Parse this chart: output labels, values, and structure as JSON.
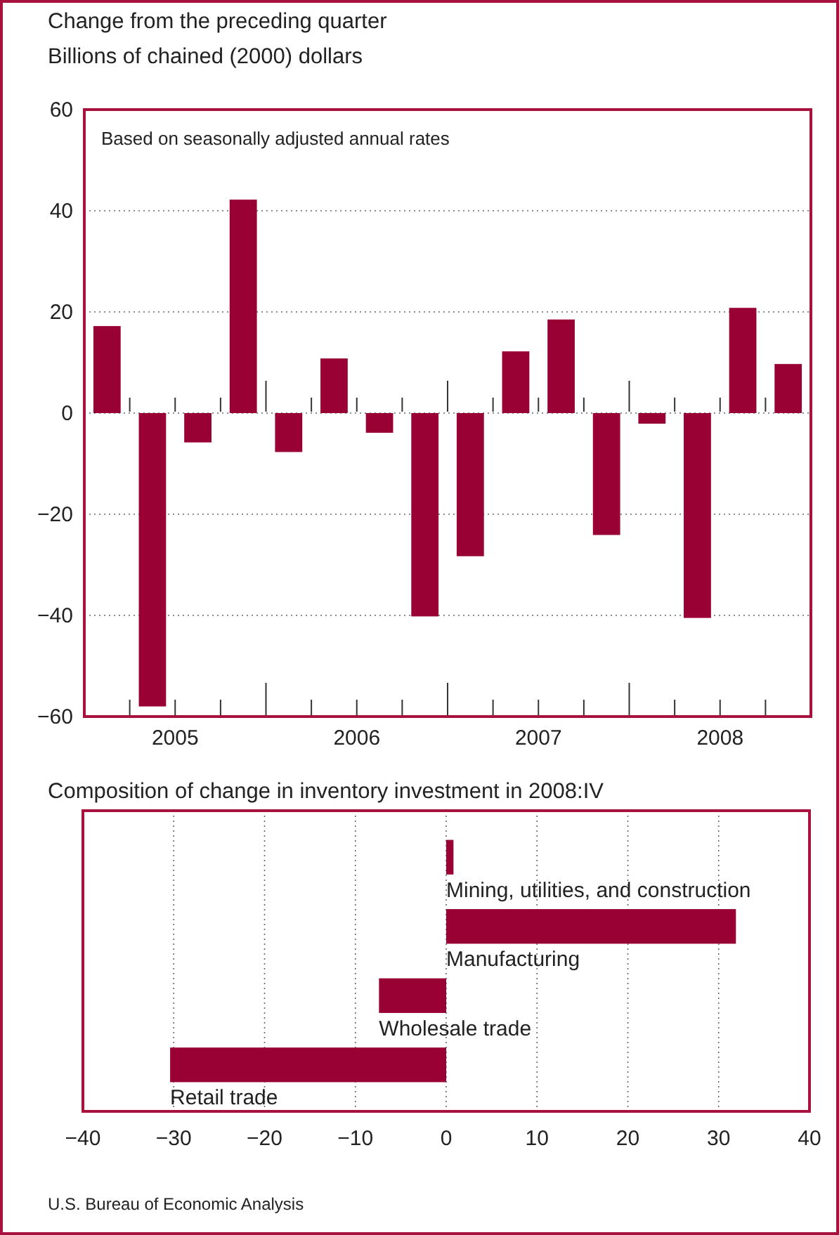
{
  "chart_data": [
    {
      "type": "bar",
      "title": "Change from the preceding quarter",
      "subtitle": "Billions of chained (2000) dollars",
      "x": [
        2005.125,
        2005.375,
        2005.625,
        2005.875,
        2006.125,
        2006.375,
        2006.625,
        2006.875,
        2007.125,
        2007.375,
        2007.625,
        2007.875,
        2008.125,
        2008.375,
        2008.625,
        2008.875
      ],
      "values": [
        17.2,
        -58,
        -5.8,
        42.2,
        -7.7,
        10.8,
        -3.9,
        -40.2,
        -28.3,
        12.2,
        18.5,
        -24.1,
        -2.1,
        -40.5,
        20.8,
        9.7
      ],
      "color": "#990033",
      "xlim": [
        2005,
        2009
      ],
      "xticks": [
        {
          "value": 2005.5,
          "label": "2005"
        },
        {
          "value": 2006.5,
          "label": "2006"
        },
        {
          "value": 2007.5,
          "label": "2007"
        },
        {
          "value": 2008.5,
          "label": "2008"
        },
        {
          "value": 2005.25,
          "label": null
        },
        {
          "value": 2005.5,
          "label": null
        },
        {
          "value": 2005.75,
          "label": null
        },
        {
          "value": 2006,
          "label": null
        },
        {
          "value": 2006.25,
          "label": null
        },
        {
          "value": 2006.5,
          "label": null
        },
        {
          "value": 2006.75,
          "label": null
        },
        {
          "value": 2007,
          "label": null
        },
        {
          "value": 2007.25,
          "label": null
        },
        {
          "value": 2007.5,
          "label": null
        },
        {
          "value": 2007.75,
          "label": null
        },
        {
          "value": 2008,
          "label": null
        },
        {
          "value": 2008.25,
          "label": null
        },
        {
          "value": 2008.5,
          "label": null
        },
        {
          "value": 2008.75,
          "label": null
        }
      ],
      "ylim": [
        -60,
        60
      ],
      "yticks": [
        -60,
        -40,
        -20,
        0,
        20,
        40,
        60
      ],
      "grid": "y",
      "legend": false,
      "annotations": [
        "Based on seasonally adjusted annual rates"
      ]
    },
    {
      "type": "bar",
      "orientation": "horizontal",
      "title": "Composition of change in inventory investment in 2008:IV",
      "categories": [
        "Mining, utilities, and construction",
        "Manufacturing",
        "Wholesale trade",
        "Retail trade"
      ],
      "values": [
        0.8,
        31.9,
        -7.4,
        -30.4
      ],
      "color": "#990033",
      "xlim": [
        -40,
        40
      ],
      "xticks": [
        -40,
        -30,
        -20,
        -10,
        0,
        10,
        20,
        30,
        40
      ],
      "grid": "x",
      "legend": false,
      "annotations": [
        "U.S. Bureau of Economic Analysis"
      ]
    }
  ]
}
